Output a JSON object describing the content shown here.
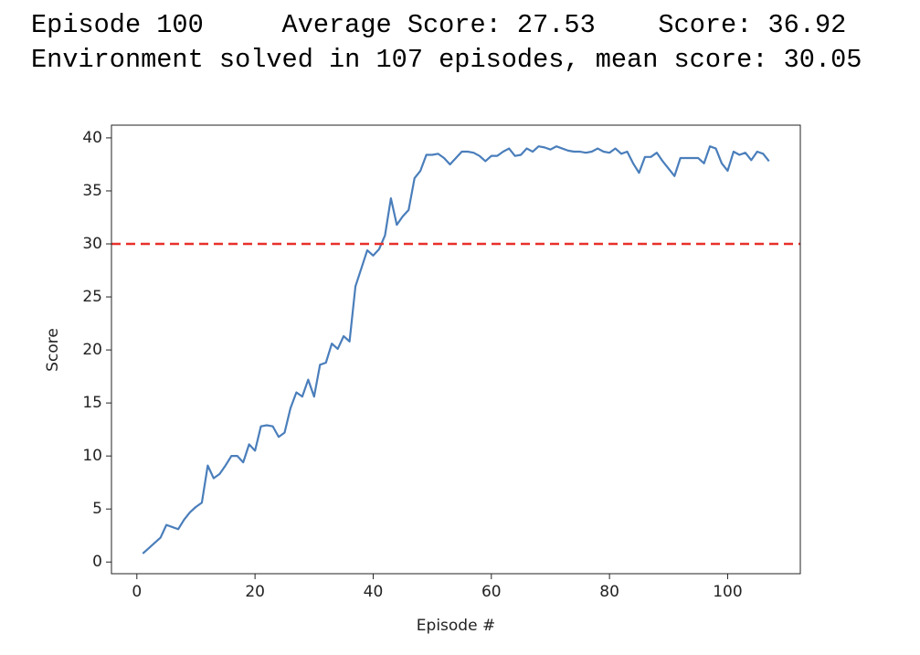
{
  "output_lines": [
    "Episode 100\tAverage Score: 27.53\tScore: 36.92",
    "Environment solved in 107 episodes, mean score: 30.05"
  ],
  "chart_data": {
    "type": "line",
    "xlabel": "Episode #",
    "ylabel": "Score",
    "x": [
      1,
      2,
      3,
      4,
      5,
      6,
      7,
      8,
      9,
      10,
      11,
      12,
      13,
      14,
      15,
      16,
      17,
      18,
      19,
      20,
      21,
      22,
      23,
      24,
      25,
      26,
      27,
      28,
      29,
      30,
      31,
      32,
      33,
      34,
      35,
      36,
      37,
      38,
      39,
      40,
      41,
      42,
      43,
      44,
      45,
      46,
      47,
      48,
      49,
      50,
      51,
      52,
      53,
      54,
      55,
      56,
      57,
      58,
      59,
      60,
      61,
      62,
      63,
      64,
      65,
      66,
      67,
      68,
      69,
      70,
      71,
      72,
      73,
      74,
      75,
      76,
      77,
      78,
      79,
      80,
      81,
      82,
      83,
      84,
      85,
      86,
      87,
      88,
      89,
      90,
      91,
      92,
      93,
      94,
      95,
      96,
      97,
      98,
      99,
      100,
      101,
      102,
      103,
      104,
      105,
      106,
      107
    ],
    "values": [
      0.8,
      1.3,
      1.8,
      2.3,
      3.5,
      3.3,
      3.1,
      4.0,
      4.7,
      5.2,
      5.6,
      9.1,
      7.9,
      8.3,
      9.1,
      10.0,
      10.0,
      9.4,
      11.1,
      10.5,
      12.8,
      12.9,
      12.8,
      11.8,
      12.2,
      14.5,
      16.0,
      15.6,
      17.2,
      15.6,
      18.6,
      18.8,
      20.6,
      20.1,
      21.3,
      20.8,
      26.0,
      27.7,
      29.4,
      28.9,
      29.5,
      30.8,
      34.3,
      31.8,
      32.6,
      33.2,
      36.2,
      36.9,
      38.4,
      38.4,
      38.5,
      38.1,
      37.5,
      38.1,
      38.7,
      38.7,
      38.6,
      38.3,
      37.8,
      38.3,
      38.3,
      38.7,
      39.0,
      38.3,
      38.4,
      39.0,
      38.7,
      39.2,
      39.1,
      38.9,
      39.2,
      39.0,
      38.8,
      38.7,
      38.7,
      38.6,
      38.7,
      39.0,
      38.7,
      38.6,
      39.0,
      38.5,
      38.7,
      37.6,
      36.7,
      38.2,
      38.2,
      38.6,
      37.8,
      37.1,
      36.4,
      38.1,
      38.1,
      38.1,
      38.1,
      37.6,
      39.2,
      39.0,
      37.6,
      36.9,
      38.7,
      38.4,
      38.6,
      37.9,
      38.7,
      38.5,
      37.8
    ],
    "color": "#4a7ebb",
    "threshold": 30,
    "threshold_color": "#e8302a",
    "threshold_style": "dashed",
    "xlim": [
      -4.3,
      112.3
    ],
    "xticks": [
      0,
      20,
      40,
      60,
      80,
      100
    ],
    "ylim": [
      -1.1,
      41.2
    ],
    "yticks": [
      0,
      5,
      10,
      15,
      20,
      25,
      30,
      35,
      40
    ],
    "grid": false
  }
}
